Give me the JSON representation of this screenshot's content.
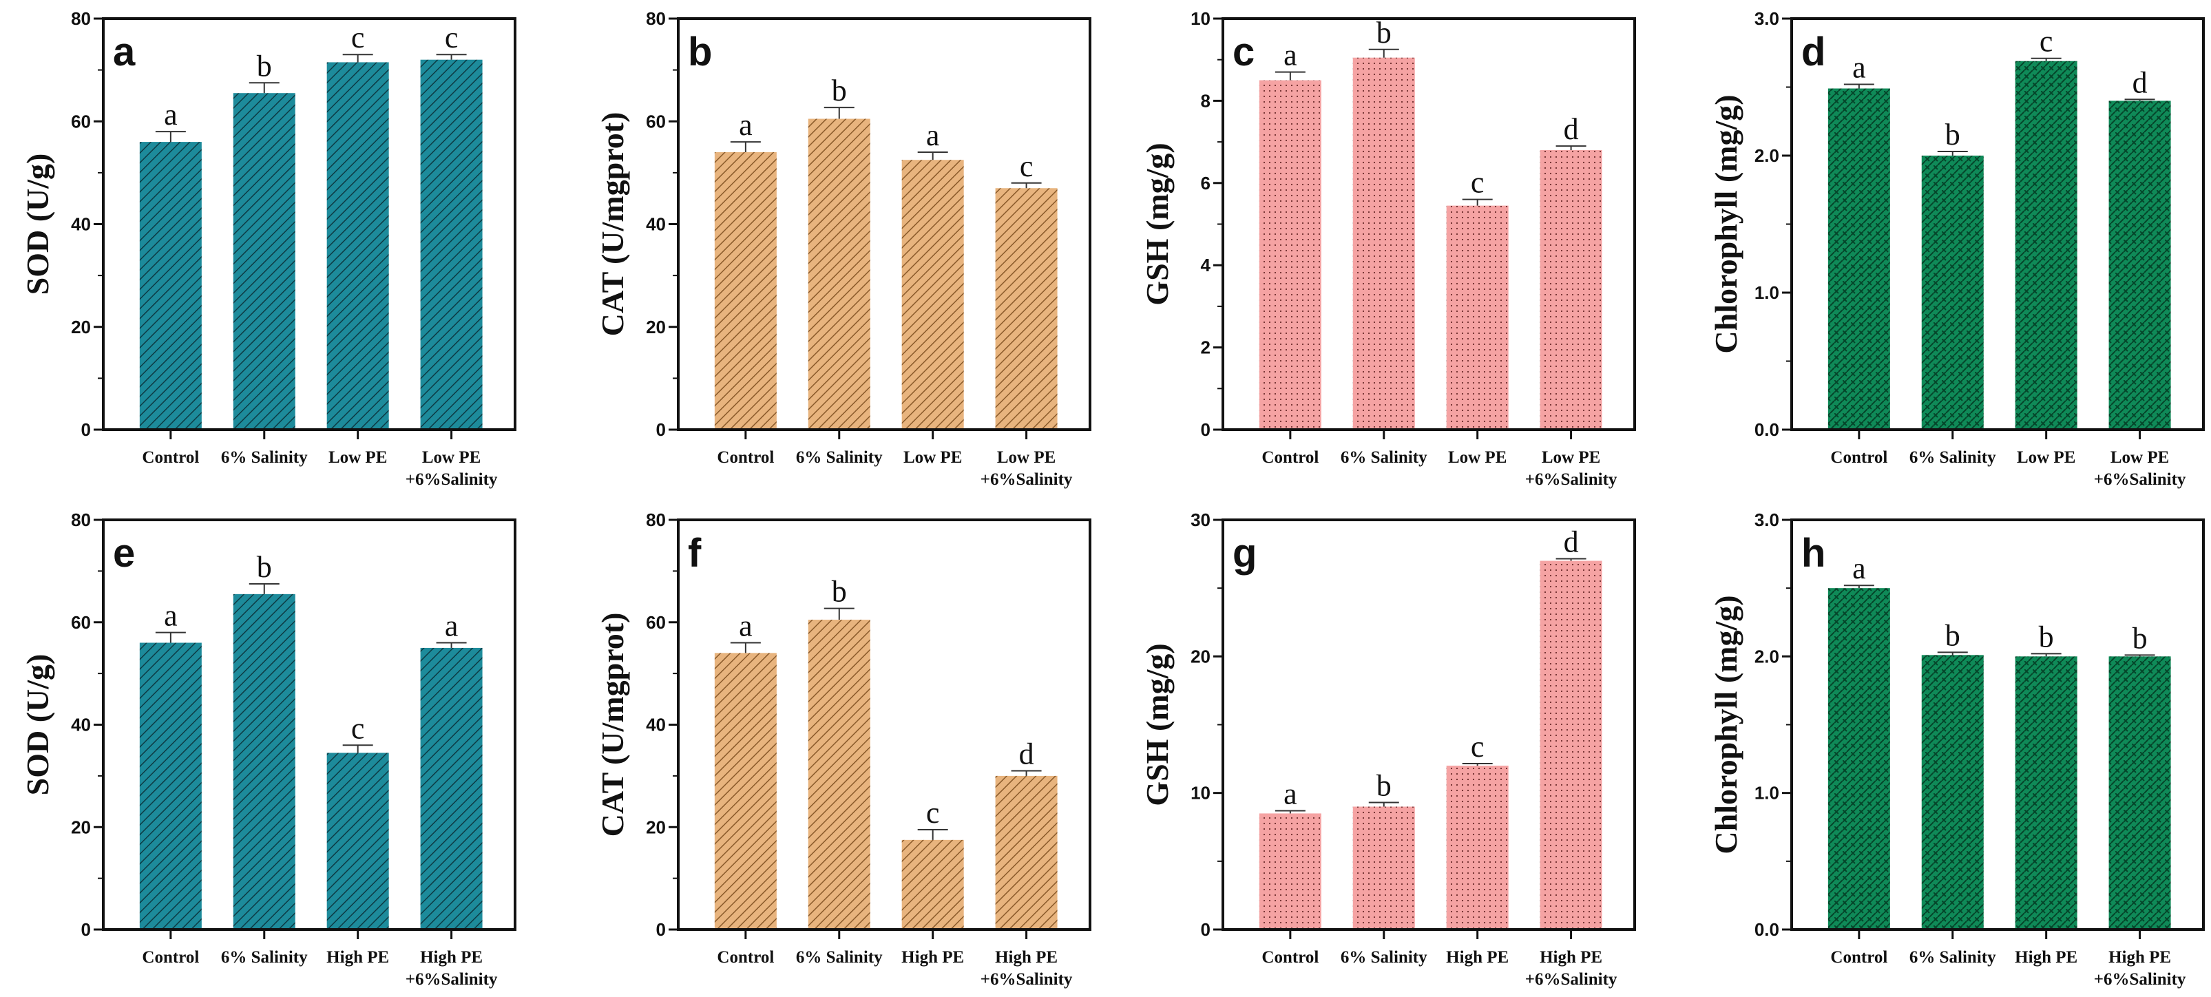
{
  "chart_data": [
    {
      "type": "bar",
      "panel": "a",
      "ylabel": "SOD (U/g)",
      "ylim": [
        0,
        80
      ],
      "yticks": [
        0,
        20,
        40,
        60,
        80
      ],
      "minor_step": 10,
      "tick_decimals": 0,
      "categories": [
        "Control",
        "6% Salinity",
        "Low PE",
        "Low PE\n+6%Salinity"
      ],
      "values": [
        56,
        65.5,
        71.5,
        72
      ],
      "errors": [
        2,
        2,
        1.5,
        1
      ],
      "significance": [
        "a",
        "b",
        "c",
        "c"
      ],
      "color": "#1d8b9b",
      "pattern": "hatch-teal"
    },
    {
      "type": "bar",
      "panel": "b",
      "ylabel": "CAT (U/mgprot)",
      "ylim": [
        0,
        80
      ],
      "yticks": [
        0,
        20,
        40,
        60,
        80
      ],
      "minor_step": 10,
      "tick_decimals": 0,
      "categories": [
        "Control",
        "6% Salinity",
        "Low PE",
        "Low PE\n+6%Salinity"
      ],
      "values": [
        54,
        60.5,
        52.5,
        47
      ],
      "errors": [
        2,
        2.2,
        1.5,
        1
      ],
      "significance": [
        "a",
        "b",
        "a",
        "c"
      ],
      "color": "#e8b47e",
      "pattern": "hatch-tan"
    },
    {
      "type": "bar",
      "panel": "c",
      "ylabel": "GSH (mg/g)",
      "ylim": [
        0,
        10
      ],
      "yticks": [
        0,
        2,
        4,
        6,
        8,
        10
      ],
      "minor_step": 1,
      "tick_decimals": 0,
      "categories": [
        "Control",
        "6% Salinity",
        "Low PE",
        "Low PE\n+6%Salinity"
      ],
      "values": [
        8.5,
        9.05,
        5.45,
        6.8
      ],
      "errors": [
        0.2,
        0.2,
        0.15,
        0.1
      ],
      "significance": [
        "a",
        "b",
        "c",
        "d"
      ],
      "color": "#f5a3a3",
      "pattern": "dots-pink"
    },
    {
      "type": "bar",
      "panel": "d",
      "ylabel": "Chlorophyll (mg/g)",
      "ylim": [
        0,
        3
      ],
      "yticks": [
        0,
        1,
        2,
        3
      ],
      "minor_step": 0.5,
      "tick_decimals": 1,
      "categories": [
        "Control",
        "6% Salinity",
        "Low PE",
        "Low PE\n+6%Salinity"
      ],
      "values": [
        2.49,
        2.0,
        2.69,
        2.4
      ],
      "errors": [
        0.03,
        0.03,
        0.02,
        0.01
      ],
      "significance": [
        "a",
        "b",
        "c",
        "d"
      ],
      "color": "#0f8a58",
      "pattern": "weave-green"
    },
    {
      "type": "bar",
      "panel": "e",
      "ylabel": "SOD (U/g)",
      "ylim": [
        0,
        80
      ],
      "yticks": [
        0,
        20,
        40,
        60,
        80
      ],
      "minor_step": 10,
      "tick_decimals": 0,
      "categories": [
        "Control",
        "6% Salinity",
        "High PE",
        "High PE\n+6%Salinity"
      ],
      "values": [
        56,
        65.5,
        34.5,
        55
      ],
      "errors": [
        2,
        2,
        1.5,
        1
      ],
      "significance": [
        "a",
        "b",
        "c",
        "a"
      ],
      "color": "#1d8b9b",
      "pattern": "hatch-teal"
    },
    {
      "type": "bar",
      "panel": "f",
      "ylabel": "CAT (U/mgprot)",
      "ylim": [
        0,
        80
      ],
      "yticks": [
        0,
        20,
        40,
        60,
        80
      ],
      "minor_step": 10,
      "tick_decimals": 0,
      "categories": [
        "Control",
        "6% Salinity",
        "High PE",
        "High PE\n+6%Salinity"
      ],
      "values": [
        54,
        60.5,
        17.5,
        30
      ],
      "errors": [
        2,
        2.2,
        2,
        1
      ],
      "significance": [
        "a",
        "b",
        "c",
        "d"
      ],
      "color": "#e8b47e",
      "pattern": "hatch-tan"
    },
    {
      "type": "bar",
      "panel": "g",
      "ylabel": "GSH (mg/g)",
      "ylim": [
        0,
        30
      ],
      "yticks": [
        0,
        10,
        20,
        30
      ],
      "minor_step": 5,
      "tick_decimals": 0,
      "categories": [
        "Control",
        "6% Salinity",
        "High PE",
        "High PE\n+6%Salinity"
      ],
      "values": [
        8.5,
        9.0,
        12.0,
        27.0
      ],
      "errors": [
        0.2,
        0.3,
        0.15,
        0.15
      ],
      "significance": [
        "a",
        "b",
        "c",
        "d"
      ],
      "color": "#f5a3a3",
      "pattern": "dots-pink"
    },
    {
      "type": "bar",
      "panel": "h",
      "ylabel": "Chlorophyll (mg/g)",
      "ylim": [
        0,
        3
      ],
      "yticks": [
        0,
        1,
        2,
        3
      ],
      "minor_step": 0.5,
      "tick_decimals": 1,
      "categories": [
        "Control",
        "6% Salinity",
        "High PE",
        "High PE\n+6%Salinity"
      ],
      "values": [
        2.5,
        2.01,
        2.0,
        2.0
      ],
      "errors": [
        0.02,
        0.02,
        0.02,
        0.01
      ],
      "significance": [
        "a",
        "b",
        "b",
        "b"
      ],
      "color": "#0f8a58",
      "pattern": "weave-green"
    }
  ]
}
